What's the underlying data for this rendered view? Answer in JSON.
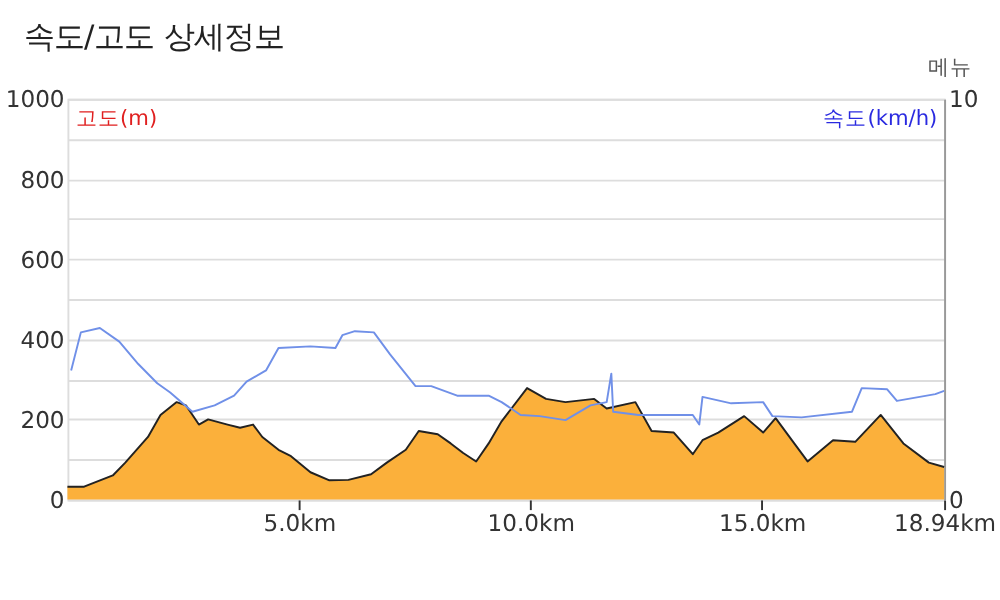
{
  "chart_data": {
    "type": "area",
    "title": "속도/고도 상세정보",
    "ylabel": "고도(m)",
    "y2label": "속도(km/h)",
    "annotations": [
      "메뉴"
    ],
    "xlim": [
      0,
      18.94
    ],
    "xticks": [
      {
        "value": 5,
        "label": "5.0km"
      },
      {
        "value": 10,
        "label": "10.0km"
      },
      {
        "value": 15,
        "label": "15.0km"
      },
      {
        "value": 18.94,
        "label": "18.94km"
      }
    ],
    "ylim": [
      0,
      1000
    ],
    "yticks": [
      0,
      {
        "value": 100,
        "label": null
      },
      200,
      {
        "value": 300,
        "label": null
      },
      400,
      {
        "value": 500,
        "label": null
      },
      600,
      {
        "value": 700,
        "label": null
      },
      800,
      {
        "value": 900,
        "label": null
      },
      1000
    ],
    "y2lim": [
      0,
      10
    ],
    "y2ticks": [
      0,
      10
    ],
    "grid": "y",
    "legend": false,
    "series": [
      {
        "color": "#fbb03b",
        "x": [
          0,
          0.36,
          0.98,
          1.25,
          1.74,
          2.01,
          2.36,
          2.56,
          2.84,
          3.04,
          3.46,
          3.73,
          4.01,
          4.21,
          4.56,
          4.83,
          5.25,
          5.66,
          6.07,
          6.56,
          6.9,
          7.31,
          7.59,
          8.0,
          8.28,
          8.55,
          8.83,
          9.1,
          9.38,
          9.93,
          10.34,
          10.76,
          11.38,
          11.65,
          12.27,
          12.62,
          13.1,
          13.51,
          13.72,
          14.06,
          14.62,
          15.03,
          15.3,
          15.65,
          15.99,
          16.54,
          17.02,
          17.57,
          18.06,
          18.61,
          18.94
        ],
        "values": [
          32,
          32,
          60,
          92,
          156,
          211,
          243,
          235,
          187,
          200,
          187,
          179,
          187,
          156,
          124,
          108,
          68,
          48,
          49,
          63,
          92,
          124,
          171,
          163,
          140,
          116,
          95,
          140,
          195,
          278,
          251,
          243,
          251,
          227,
          243,
          171,
          167,
          113,
          148,
          167,
          208,
          167,
          203,
          148,
          95,
          148,
          144,
          211,
          140,
          92,
          81
        ]
      },
      {
        "type": "line",
        "axis": "y2",
        "color": "#7090e8",
        "x": [
          0.08,
          0.29,
          0.7,
          1.12,
          1.53,
          1.94,
          2.22,
          2.7,
          3.18,
          3.6,
          3.87,
          4.29,
          4.56,
          5.25,
          5.79,
          5.94,
          6.21,
          6.62,
          6.97,
          7.52,
          7.86,
          8.42,
          9.1,
          9.38,
          9.79,
          10.2,
          10.76,
          11.3,
          11.65,
          11.75,
          11.79,
          12.34,
          13.51,
          13.65,
          13.72,
          14.34,
          15.03,
          15.23,
          15.86,
          16.95,
          17.16,
          17.71,
          17.92,
          18.75,
          18.94
        ],
        "values": [
          3.22,
          4.17,
          4.28,
          3.94,
          3.38,
          2.9,
          2.67,
          2.19,
          2.35,
          2.59,
          2.94,
          3.22,
          3.78,
          3.82,
          3.78,
          4.1,
          4.2,
          4.17,
          3.62,
          2.83,
          2.83,
          2.59,
          2.59,
          2.43,
          2.11,
          2.08,
          1.98,
          2.35,
          2.43,
          3.14,
          2.19,
          2.11,
          2.11,
          1.87,
          2.56,
          2.4,
          2.43,
          2.08,
          2.05,
          2.19,
          2.78,
          2.75,
          2.46,
          2.63,
          2.71
        ]
      }
    ]
  }
}
